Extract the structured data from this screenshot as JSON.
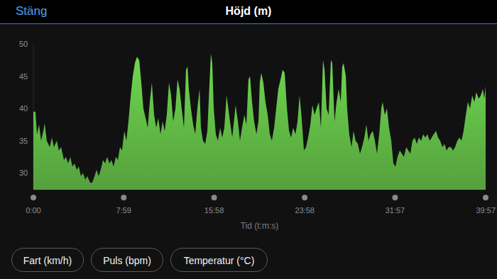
{
  "header": {
    "close": "Stäng"
  },
  "chart_data": {
    "type": "area",
    "title": "Höjd (m)",
    "x_label": "Tid (t:m:s)",
    "color": "#6fd84e",
    "grid": false,
    "xlim": [
      0,
      2397
    ],
    "ylim": [
      27.4,
      50
    ],
    "yticks": [
      30,
      35,
      40,
      45,
      50
    ],
    "xticks": [
      {
        "value": 0,
        "label": "0:00"
      },
      {
        "value": 479,
        "label": "7:59"
      },
      {
        "value": 958,
        "label": "15:58"
      },
      {
        "value": 1438,
        "label": "23:58"
      },
      {
        "value": 1917,
        "label": "31:57"
      },
      {
        "value": 2397,
        "label": "39:57"
      }
    ],
    "x": [
      0,
      11,
      19,
      30,
      41,
      53,
      60,
      71,
      87,
      98,
      109,
      124,
      135,
      147,
      162,
      173,
      184,
      196,
      207,
      218,
      230,
      241,
      252,
      263,
      275,
      286,
      301,
      312,
      324,
      335,
      346,
      357,
      369,
      380,
      391,
      403,
      414,
      425,
      437,
      448,
      459,
      470,
      482,
      493,
      504,
      516,
      527,
      538,
      549,
      561,
      572,
      583,
      595,
      606,
      617,
      628,
      640,
      651,
      662,
      674,
      685,
      696,
      707,
      719,
      730,
      741,
      753,
      764,
      775,
      786,
      798,
      809,
      817,
      824,
      835,
      847,
      858,
      869,
      881,
      888,
      899,
      911,
      922,
      933,
      941,
      948,
      956,
      967,
      978,
      990,
      1001,
      1012,
      1024,
      1031,
      1042,
      1054,
      1065,
      1072,
      1084,
      1095,
      1106,
      1118,
      1129,
      1140,
      1148,
      1159,
      1170,
      1182,
      1193,
      1200,
      1208,
      1219,
      1230,
      1242,
      1253,
      1264,
      1276,
      1287,
      1298,
      1310,
      1321,
      1332,
      1344,
      1355,
      1366,
      1377,
      1389,
      1400,
      1411,
      1422,
      1434,
      1445,
      1456,
      1468,
      1479,
      1490,
      1501,
      1513,
      1524,
      1535,
      1543,
      1554,
      1565,
      1577,
      1584,
      1596,
      1607,
      1618,
      1629,
      1637,
      1644,
      1656,
      1663,
      1674,
      1686,
      1697,
      1708,
      1720,
      1731,
      1742,
      1754,
      1765,
      1776,
      1787,
      1799,
      1810,
      1821,
      1833,
      1844,
      1851,
      1863,
      1874,
      1885,
      1897,
      1908,
      1919,
      1930,
      1942,
      1953,
      1964,
      1976,
      1987,
      1998,
      2009,
      2021,
      2032,
      2043,
      2055,
      2066,
      2077,
      2089,
      2100,
      2111,
      2122,
      2134,
      2145,
      2156,
      2168,
      2179,
      2190,
      2201,
      2213,
      2224,
      2235,
      2247,
      2258,
      2269,
      2280,
      2292,
      2303,
      2314,
      2326,
      2337,
      2348,
      2360,
      2371,
      2382,
      2390,
      2397
    ],
    "values": [
      39.5,
      39.5,
      36,
      37.5,
      35,
      36.5,
      37.7,
      35,
      34,
      35.5,
      34,
      35,
      33.5,
      34,
      32,
      32.5,
      31.5,
      32.5,
      31,
      31.5,
      30.5,
      31,
      29.5,
      30,
      29,
      29.5,
      28.5,
      28.5,
      29.5,
      30.5,
      29.5,
      30.5,
      32,
      31.5,
      32.5,
      31.5,
      32,
      31,
      32.5,
      32,
      34,
      33.5,
      36.5,
      35,
      38,
      42,
      45,
      47,
      48,
      47.5,
      44,
      40,
      38.5,
      37,
      41,
      44,
      39,
      37,
      38.5,
      36,
      38,
      36.5,
      39,
      44,
      42,
      38,
      40,
      44.5,
      43,
      40,
      37,
      46,
      46.5,
      43,
      40,
      37.5,
      36,
      40,
      43,
      37,
      35,
      34.5,
      36.5,
      43.5,
      48.5,
      47,
      40,
      36,
      35,
      37,
      35.5,
      37,
      42,
      40.5,
      38,
      35.5,
      38.5,
      40.5,
      38,
      35,
      37,
      39,
      37.5,
      44.5,
      45,
      41,
      38,
      36,
      38,
      44,
      45.5,
      44,
      41,
      39,
      36,
      35,
      37,
      40,
      43,
      44.5,
      46,
      45.5,
      40,
      36.5,
      35.5,
      37,
      36,
      38,
      42,
      38.5,
      33.5,
      34,
      35.5,
      37.5,
      40.5,
      39,
      40,
      41,
      37,
      47.5,
      46,
      40,
      39,
      47.5,
      47,
      38,
      41,
      43,
      41,
      46.5,
      47,
      45,
      40,
      36,
      34,
      36.5,
      35,
      34.5,
      33,
      34,
      35.5,
      37.5,
      35,
      36,
      36.5,
      35,
      33,
      36,
      40,
      41,
      39,
      40,
      37,
      35,
      31.5,
      31,
      32.5,
      33.5,
      33,
      32.5,
      34,
      33.5,
      33,
      35,
      35.5,
      34.5,
      35.5,
      35,
      36,
      35.5,
      36,
      35,
      35.5,
      36,
      36.5,
      35.5,
      35,
      34,
      34.5,
      33.5,
      34,
      34,
      33.5,
      34,
      35,
      35.5,
      35,
      36.5,
      39,
      41,
      40,
      42,
      41,
      42.5,
      41.5,
      42,
      43,
      41.5,
      43.5
    ]
  },
  "buttons": [
    "Fart (km/h)",
    "Puls (bpm)",
    "Temperatur (°C)"
  ]
}
